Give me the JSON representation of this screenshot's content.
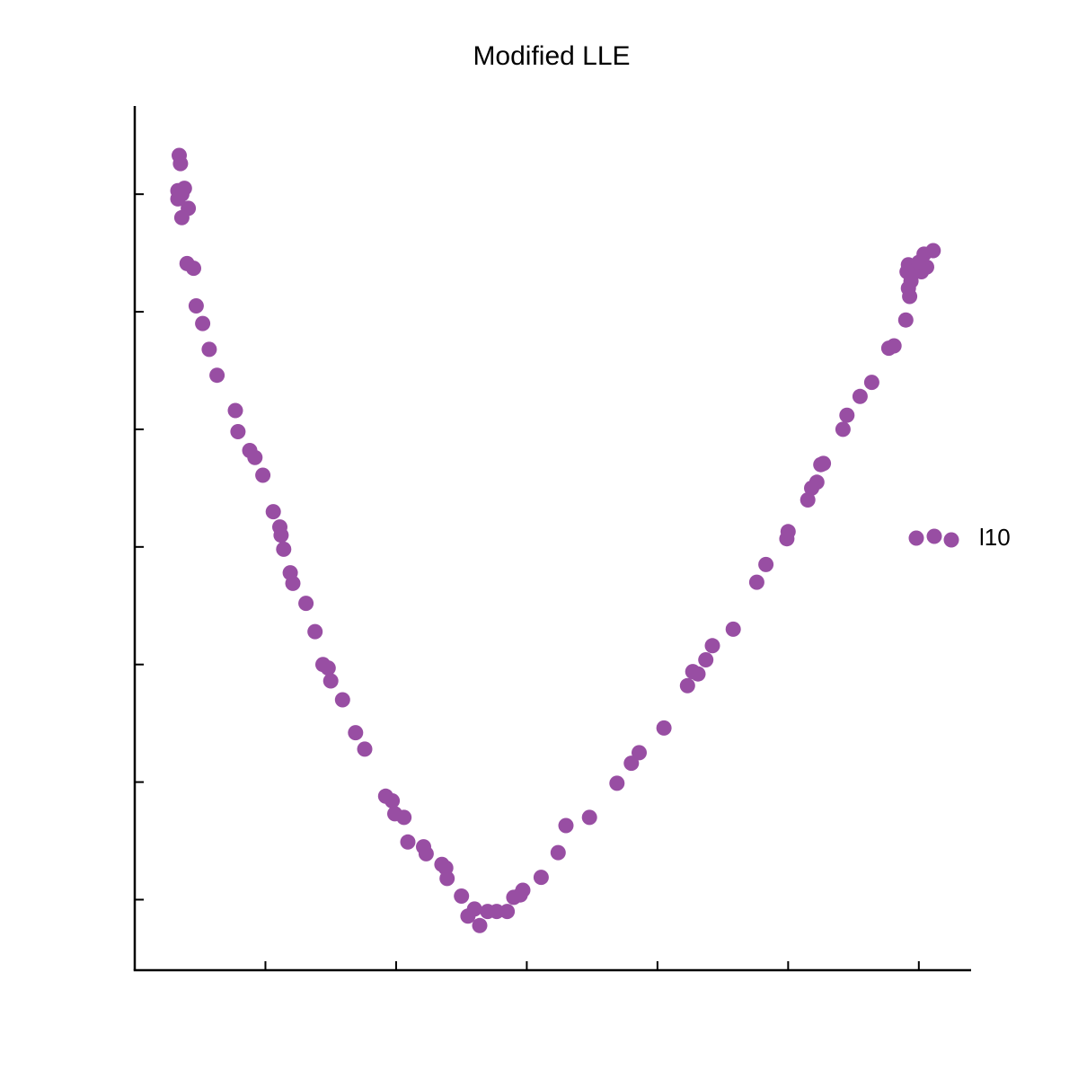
{
  "chart_data": {
    "type": "scatter",
    "title": "Modified LLE",
    "xlabel": "",
    "ylabel": "",
    "x_tick_labels_visible": false,
    "y_tick_labels_visible": false,
    "xlim": [
      0,
      6.4
    ],
    "ylim": [
      0,
      7.35
    ],
    "x_ticks": [
      1,
      2,
      3,
      4,
      5,
      6
    ],
    "y_ticks": [
      0.6,
      1.6,
      2.6,
      3.6,
      4.6,
      5.6,
      6.6
    ],
    "grid": false,
    "legend": {
      "position": "right",
      "entries": [
        "l10"
      ]
    },
    "series": [
      {
        "name": "l10",
        "color": "#984ea3",
        "points": [
          [
            0.34,
            6.93
          ],
          [
            0.35,
            6.86
          ],
          [
            0.33,
            6.63
          ],
          [
            0.33,
            6.56
          ],
          [
            0.36,
            6.6
          ],
          [
            0.38,
            6.65
          ],
          [
            0.41,
            6.48
          ],
          [
            0.36,
            6.4
          ],
          [
            0.4,
            6.01
          ],
          [
            0.45,
            5.97
          ],
          [
            0.47,
            5.65
          ],
          [
            0.52,
            5.5
          ],
          [
            0.57,
            5.28
          ],
          [
            0.63,
            5.06
          ],
          [
            0.77,
            4.76
          ],
          [
            0.79,
            4.58
          ],
          [
            0.88,
            4.42
          ],
          [
            0.92,
            4.36
          ],
          [
            0.98,
            4.21
          ],
          [
            1.06,
            3.9
          ],
          [
            1.11,
            3.77
          ],
          [
            1.12,
            3.7
          ],
          [
            1.14,
            3.58
          ],
          [
            1.19,
            3.38
          ],
          [
            1.21,
            3.29
          ],
          [
            1.31,
            3.12
          ],
          [
            1.38,
            2.88
          ],
          [
            1.44,
            2.6
          ],
          [
            1.48,
            2.57
          ],
          [
            1.5,
            2.46
          ],
          [
            1.59,
            2.3
          ],
          [
            1.69,
            2.02
          ],
          [
            1.76,
            1.88
          ],
          [
            1.92,
            1.48
          ],
          [
            1.97,
            1.44
          ],
          [
            1.99,
            1.33
          ],
          [
            2.06,
            1.3
          ],
          [
            2.09,
            1.09
          ],
          [
            2.21,
            1.05
          ],
          [
            2.23,
            0.99
          ],
          [
            2.35,
            0.9
          ],
          [
            2.38,
            0.87
          ],
          [
            2.39,
            0.78
          ],
          [
            2.5,
            0.63
          ],
          [
            2.55,
            0.46
          ],
          [
            2.6,
            0.52
          ],
          [
            2.64,
            0.38
          ],
          [
            2.7,
            0.5
          ],
          [
            2.77,
            0.5
          ],
          [
            2.85,
            0.5
          ],
          [
            2.9,
            0.62
          ],
          [
            2.95,
            0.64
          ],
          [
            2.97,
            0.68
          ],
          [
            3.11,
            0.79
          ],
          [
            3.24,
            1.0
          ],
          [
            3.3,
            1.23
          ],
          [
            3.48,
            1.3
          ],
          [
            3.69,
            1.59
          ],
          [
            3.8,
            1.76
          ],
          [
            3.86,
            1.85
          ],
          [
            4.05,
            2.06
          ],
          [
            4.23,
            2.42
          ],
          [
            4.27,
            2.54
          ],
          [
            4.31,
            2.52
          ],
          [
            4.37,
            2.64
          ],
          [
            4.42,
            2.76
          ],
          [
            4.58,
            2.9
          ],
          [
            4.76,
            3.3
          ],
          [
            4.83,
            3.45
          ],
          [
            4.99,
            3.67
          ],
          [
            5.0,
            3.73
          ],
          [
            5.15,
            4.0
          ],
          [
            5.18,
            4.1
          ],
          [
            5.22,
            4.15
          ],
          [
            5.25,
            4.3
          ],
          [
            5.27,
            4.31
          ],
          [
            5.42,
            4.6
          ],
          [
            5.45,
            4.72
          ],
          [
            5.55,
            4.88
          ],
          [
            5.64,
            5.0
          ],
          [
            5.77,
            5.29
          ],
          [
            5.81,
            5.31
          ],
          [
            5.9,
            5.53
          ],
          [
            5.93,
            5.73
          ],
          [
            5.92,
            5.8
          ],
          [
            5.94,
            5.86
          ],
          [
            5.91,
            5.94
          ],
          [
            5.92,
            6.0
          ],
          [
            5.96,
            5.99
          ],
          [
            5.98,
            5.96
          ],
          [
            6.02,
            5.94
          ],
          [
            6.06,
            5.98
          ],
          [
            6.0,
            6.02
          ],
          [
            6.04,
            6.09
          ],
          [
            6.11,
            6.12
          ]
        ]
      }
    ]
  }
}
